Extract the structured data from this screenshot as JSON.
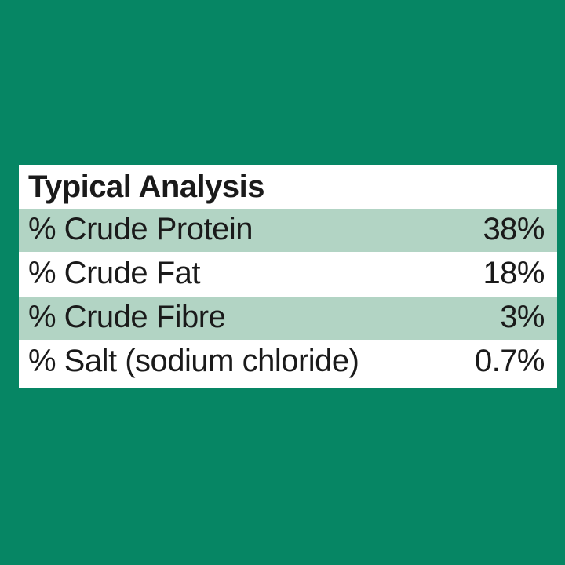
{
  "colors": {
    "page_bg": "#068664",
    "panel_bg": "#ffffff",
    "row_odd_bg": "#b2d4c4",
    "row_even_bg": "#ffffff",
    "text": "#1a1a1a"
  },
  "analysis": {
    "title": "Typical Analysis",
    "title_fontsize": 40,
    "label_fontsize": 40,
    "rows": [
      {
        "label": "% Crude Protein",
        "value": "38%"
      },
      {
        "label": "% Crude Fat",
        "value": "18%"
      },
      {
        "label": "% Crude Fibre",
        "value": "3%"
      },
      {
        "label": "% Salt (sodium chloride)",
        "value": "0.7%"
      }
    ]
  }
}
